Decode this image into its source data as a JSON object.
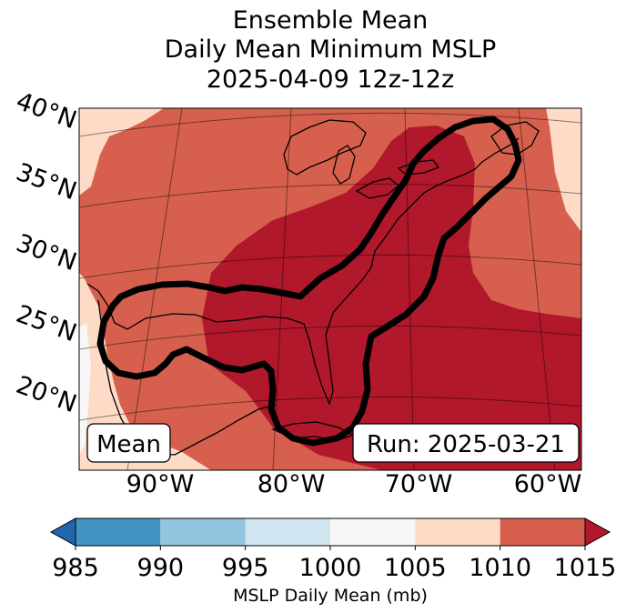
{
  "chart_data": {
    "type": "heatmap",
    "title_lines": [
      "Ensemble Mean",
      "Daily Mean Minimum MSLP",
      "2025-04-09 12z-12z"
    ],
    "lat_labels": [
      "40°N",
      "35°N",
      "30°N",
      "25°N",
      "20°N"
    ],
    "lon_labels": [
      "90°W",
      "80°W",
      "70°W",
      "60°W"
    ],
    "mean_box": "Mean",
    "run_box": "Run: 2025-03-21",
    "colorbar": {
      "label": "MSLP Daily Mean (mb)",
      "ticks": [
        "985",
        "990",
        "995",
        "1000",
        "1005",
        "1010",
        "1015"
      ],
      "bins": [
        {
          "range": "<985",
          "color": "#2166ac"
        },
        {
          "range": "985-990",
          "color": "#4393c3"
        },
        {
          "range": "990-995",
          "color": "#92c5de"
        },
        {
          "range": "995-1000",
          "color": "#d1e5f0"
        },
        {
          "range": "1000-1005",
          "color": "#f7f7f7"
        },
        {
          "range": "1005-1010",
          "color": "#fddbc7"
        },
        {
          "range": "1010-1015",
          "color": "#d6604d"
        },
        {
          "range": ">1015",
          "color": "#b2182b"
        }
      ],
      "extend": "both"
    },
    "field_levels": {
      "light": "1005-1010",
      "medium": "1010-1015",
      "dark": ">1015"
    }
  }
}
